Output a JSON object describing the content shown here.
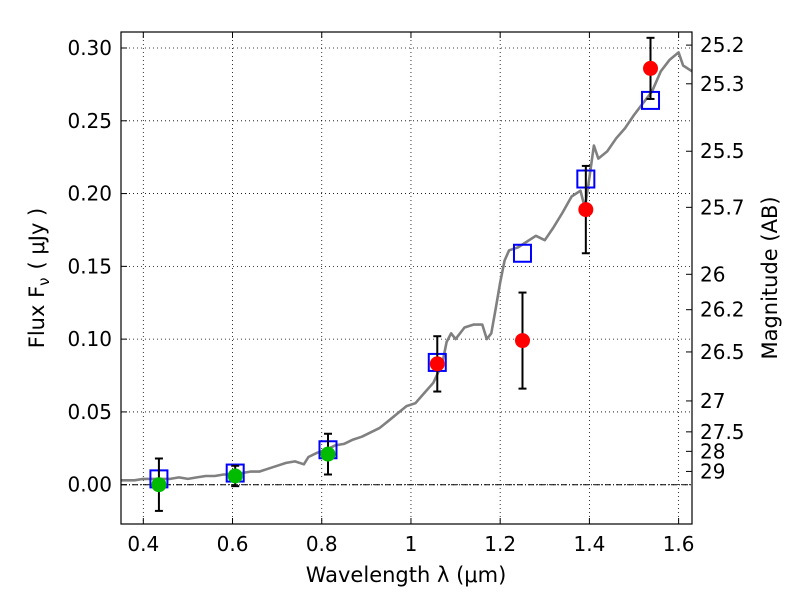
{
  "chart_data": {
    "type": "scatter",
    "xlabel": "Wavelength  λ (μm)",
    "ylabel": "Flux  F",
    "ylabel_sub": "ν",
    "ylabel_unit": "( μJy )",
    "y2label": "Magnitude (AB)",
    "xlim": [
      0.35,
      1.63
    ],
    "ylim": [
      -0.027,
      0.311
    ],
    "x_ticks": [
      0.4,
      0.6,
      0.8,
      1.0,
      1.2,
      1.4,
      1.6
    ],
    "x_tick_labels": [
      "0.4",
      "0.6",
      "0.8",
      "1",
      "1.2",
      "1.4",
      "1.6"
    ],
    "y_ticks": [
      0.0,
      0.05,
      0.1,
      0.15,
      0.2,
      0.25,
      0.3
    ],
    "y_tick_labels": [
      "0.00",
      "0.05",
      "0.10",
      "0.15",
      "0.20",
      "0.25",
      "0.30"
    ],
    "mag_ticks": [
      "25.2",
      "25.3",
      "25.5",
      "25.7",
      "26",
      "26.2",
      "26.5",
      "27",
      "27.5",
      "28",
      "29"
    ],
    "grid": true,
    "model_color": "#808080",
    "model_spectrum": [
      [
        0.35,
        0.003
      ],
      [
        0.38,
        0.003
      ],
      [
        0.4,
        0.004
      ],
      [
        0.42,
        0.004
      ],
      [
        0.44,
        0.004
      ],
      [
        0.46,
        0.004
      ],
      [
        0.48,
        0.005
      ],
      [
        0.5,
        0.004
      ],
      [
        0.52,
        0.005
      ],
      [
        0.54,
        0.006
      ],
      [
        0.56,
        0.006
      ],
      [
        0.58,
        0.007
      ],
      [
        0.6,
        0.007
      ],
      [
        0.62,
        0.008
      ],
      [
        0.64,
        0.009
      ],
      [
        0.66,
        0.009
      ],
      [
        0.68,
        0.011
      ],
      [
        0.7,
        0.013
      ],
      [
        0.72,
        0.015
      ],
      [
        0.74,
        0.016
      ],
      [
        0.76,
        0.014
      ],
      [
        0.77,
        0.019
      ],
      [
        0.79,
        0.022
      ],
      [
        0.81,
        0.024
      ],
      [
        0.83,
        0.027
      ],
      [
        0.85,
        0.028
      ],
      [
        0.87,
        0.031
      ],
      [
        0.89,
        0.033
      ],
      [
        0.91,
        0.036
      ],
      [
        0.93,
        0.039
      ],
      [
        0.95,
        0.044
      ],
      [
        0.97,
        0.049
      ],
      [
        0.99,
        0.054
      ],
      [
        1.01,
        0.056
      ],
      [
        1.03,
        0.063
      ],
      [
        1.05,
        0.07
      ],
      [
        1.07,
        0.083
      ],
      [
        1.08,
        0.098
      ],
      [
        1.09,
        0.104
      ],
      [
        1.1,
        0.1
      ],
      [
        1.12,
        0.108
      ],
      [
        1.14,
        0.11
      ],
      [
        1.16,
        0.11
      ],
      [
        1.17,
        0.1
      ],
      [
        1.18,
        0.104
      ],
      [
        1.19,
        0.121
      ],
      [
        1.2,
        0.139
      ],
      [
        1.21,
        0.154
      ],
      [
        1.22,
        0.161
      ],
      [
        1.24,
        0.163
      ],
      [
        1.26,
        0.167
      ],
      [
        1.28,
        0.171
      ],
      [
        1.3,
        0.168
      ],
      [
        1.32,
        0.177
      ],
      [
        1.34,
        0.187
      ],
      [
        1.36,
        0.198
      ],
      [
        1.38,
        0.202
      ],
      [
        1.39,
        0.19
      ],
      [
        1.4,
        0.211
      ],
      [
        1.41,
        0.233
      ],
      [
        1.42,
        0.224
      ],
      [
        1.44,
        0.229
      ],
      [
        1.46,
        0.238
      ],
      [
        1.48,
        0.245
      ],
      [
        1.5,
        0.254
      ],
      [
        1.52,
        0.262
      ],
      [
        1.54,
        0.27
      ],
      [
        1.56,
        0.284
      ],
      [
        1.58,
        0.292
      ],
      [
        1.6,
        0.297
      ],
      [
        1.61,
        0.288
      ],
      [
        1.63,
        0.284
      ]
    ],
    "model_photometry": {
      "color": "#0000ff",
      "points": [
        {
          "x": 0.435,
          "y": 0.004
        },
        {
          "x": 0.606,
          "y": 0.008
        },
        {
          "x": 0.814,
          "y": 0.024
        },
        {
          "x": 1.059,
          "y": 0.084
        },
        {
          "x": 1.25,
          "y": 0.159
        },
        {
          "x": 1.392,
          "y": 0.21
        },
        {
          "x": 1.537,
          "y": 0.264
        }
      ]
    },
    "observed": [
      {
        "x": 0.435,
        "y": 0.0,
        "err": 0.018,
        "color": "#00bb00"
      },
      {
        "x": 0.606,
        "y": 0.006,
        "err": 0.007,
        "color": "#00bb00"
      },
      {
        "x": 0.814,
        "y": 0.021,
        "err": 0.014,
        "color": "#00bb00"
      },
      {
        "x": 1.059,
        "y": 0.083,
        "err": 0.019,
        "color": "#ff0000"
      },
      {
        "x": 1.25,
        "y": 0.099,
        "err": 0.033,
        "color": "#ff0000"
      },
      {
        "x": 1.392,
        "y": 0.189,
        "err": 0.03,
        "color": "#ff0000"
      },
      {
        "x": 1.537,
        "y": 0.286,
        "err": 0.021,
        "color": "#ff0000"
      }
    ]
  }
}
